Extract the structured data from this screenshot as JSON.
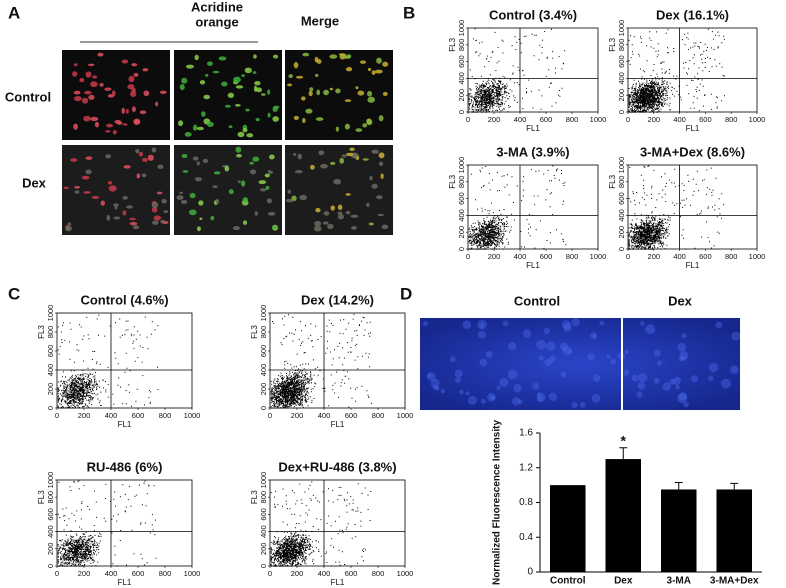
{
  "panel_a": {
    "label": "A",
    "stain_title": [
      "Acridine",
      "orange"
    ],
    "merge_title": "Merge",
    "row_labels": [
      "Control",
      "Dex"
    ]
  },
  "flow_axes": {
    "xlabel": "FL1",
    "ylabel": "FL3",
    "xlim": [
      0,
      1000
    ],
    "ylim": [
      0,
      1000
    ],
    "xticks": [
      0,
      200,
      400,
      600,
      800,
      1000
    ],
    "yticks": [
      0,
      200,
      400,
      600,
      800,
      1000
    ],
    "gate_x": 400,
    "gate_y": 400
  },
  "panel_b": {
    "label": "B",
    "plots": [
      {
        "title": "Control (3.4%)"
      },
      {
        "title": "Dex (16.1%)"
      },
      {
        "title": "3-MA (3.9%)"
      },
      {
        "title": "3-MA+Dex (8.6%)"
      }
    ]
  },
  "panel_c": {
    "label": "C",
    "plots": [
      {
        "title": "Control (4.6%)"
      },
      {
        "title": "Dex (14.2%)"
      },
      {
        "title": "RU-486 (6%)"
      },
      {
        "title": "Dex+RU-486 (3.8%)"
      }
    ]
  },
  "panel_d": {
    "label": "D",
    "image_labels": [
      "Control",
      "Dex"
    ]
  },
  "chart_data": {
    "type": "bar",
    "ylabel": "Normalized Fluorescence Intensity",
    "categories": [
      "Control",
      "Dex",
      "3-MA",
      "3-MA+Dex"
    ],
    "values": [
      1.0,
      1.3,
      0.95,
      0.95
    ],
    "errors": [
      0,
      0.13,
      0.08,
      0.07
    ],
    "color": "#000000",
    "ylim": [
      0,
      1.6
    ],
    "yticks": [
      0,
      0.4,
      0.8,
      1.2,
      1.6
    ],
    "annotations": [
      {
        "text": "*",
        "category": "Dex"
      }
    ]
  }
}
